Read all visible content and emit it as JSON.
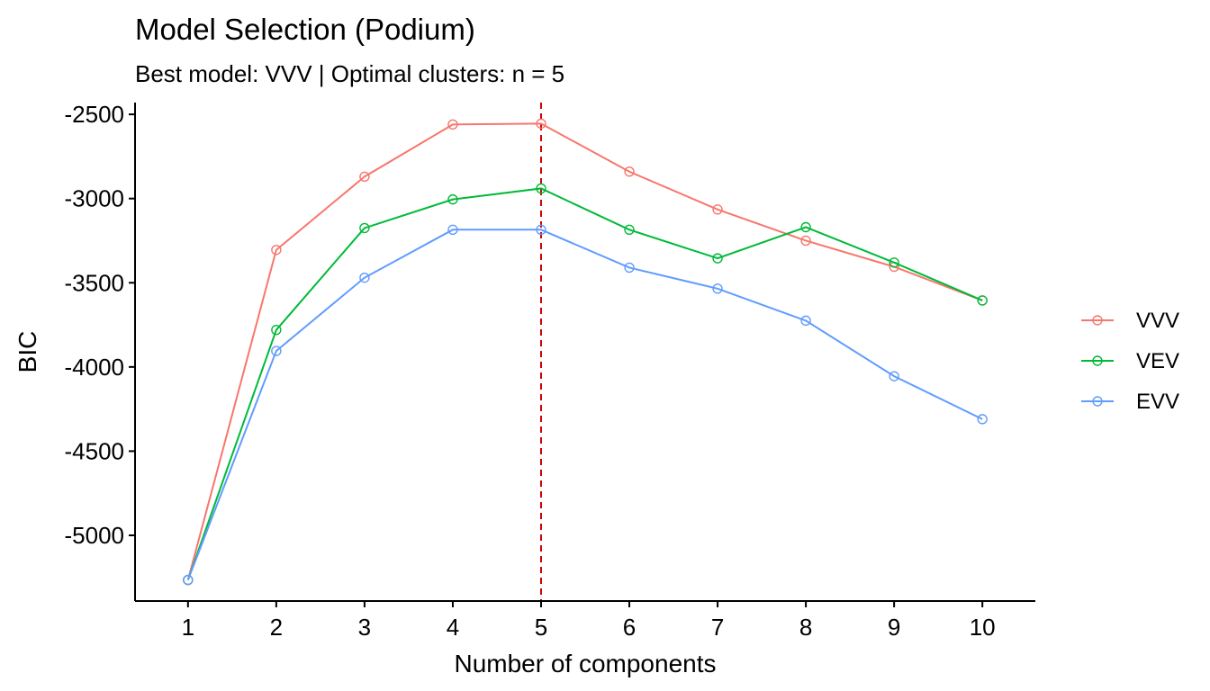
{
  "chart_data": {
    "type": "line",
    "title": "Model Selection (Podium)",
    "subtitle": "Best model: VVV | Optimal clusters: n = 5",
    "xlabel": "Number of components",
    "ylabel": "BIC",
    "x": [
      1,
      2,
      3,
      4,
      5,
      6,
      7,
      8,
      9,
      10
    ],
    "xlim": [
      0.4,
      10.6
    ],
    "ylim": [
      -5390,
      -2430
    ],
    "yticks": [
      -5000,
      -4500,
      -4000,
      -3500,
      -3000,
      -2500
    ],
    "optimal_n": 5,
    "reference_line_color": "#CC0000",
    "legend_position": "right",
    "grid": false,
    "series": [
      {
        "name": "VVV",
        "color": "#F8766D",
        "values": [
          -5265,
          -3305,
          -2870,
          -2560,
          -2555,
          -2840,
          -3065,
          -3250,
          -3405,
          -3605
        ]
      },
      {
        "name": "VEV",
        "color": "#00BA38",
        "values": [
          -5265,
          -3780,
          -3175,
          -3005,
          -2940,
          -3185,
          -3355,
          -3170,
          -3380,
          -3605
        ]
      },
      {
        "name": "EVV",
        "color": "#619CFF",
        "values": [
          -5265,
          -3905,
          -3470,
          -3185,
          -3185,
          -3410,
          -3535,
          -3725,
          -4055,
          -4310
        ]
      }
    ]
  }
}
